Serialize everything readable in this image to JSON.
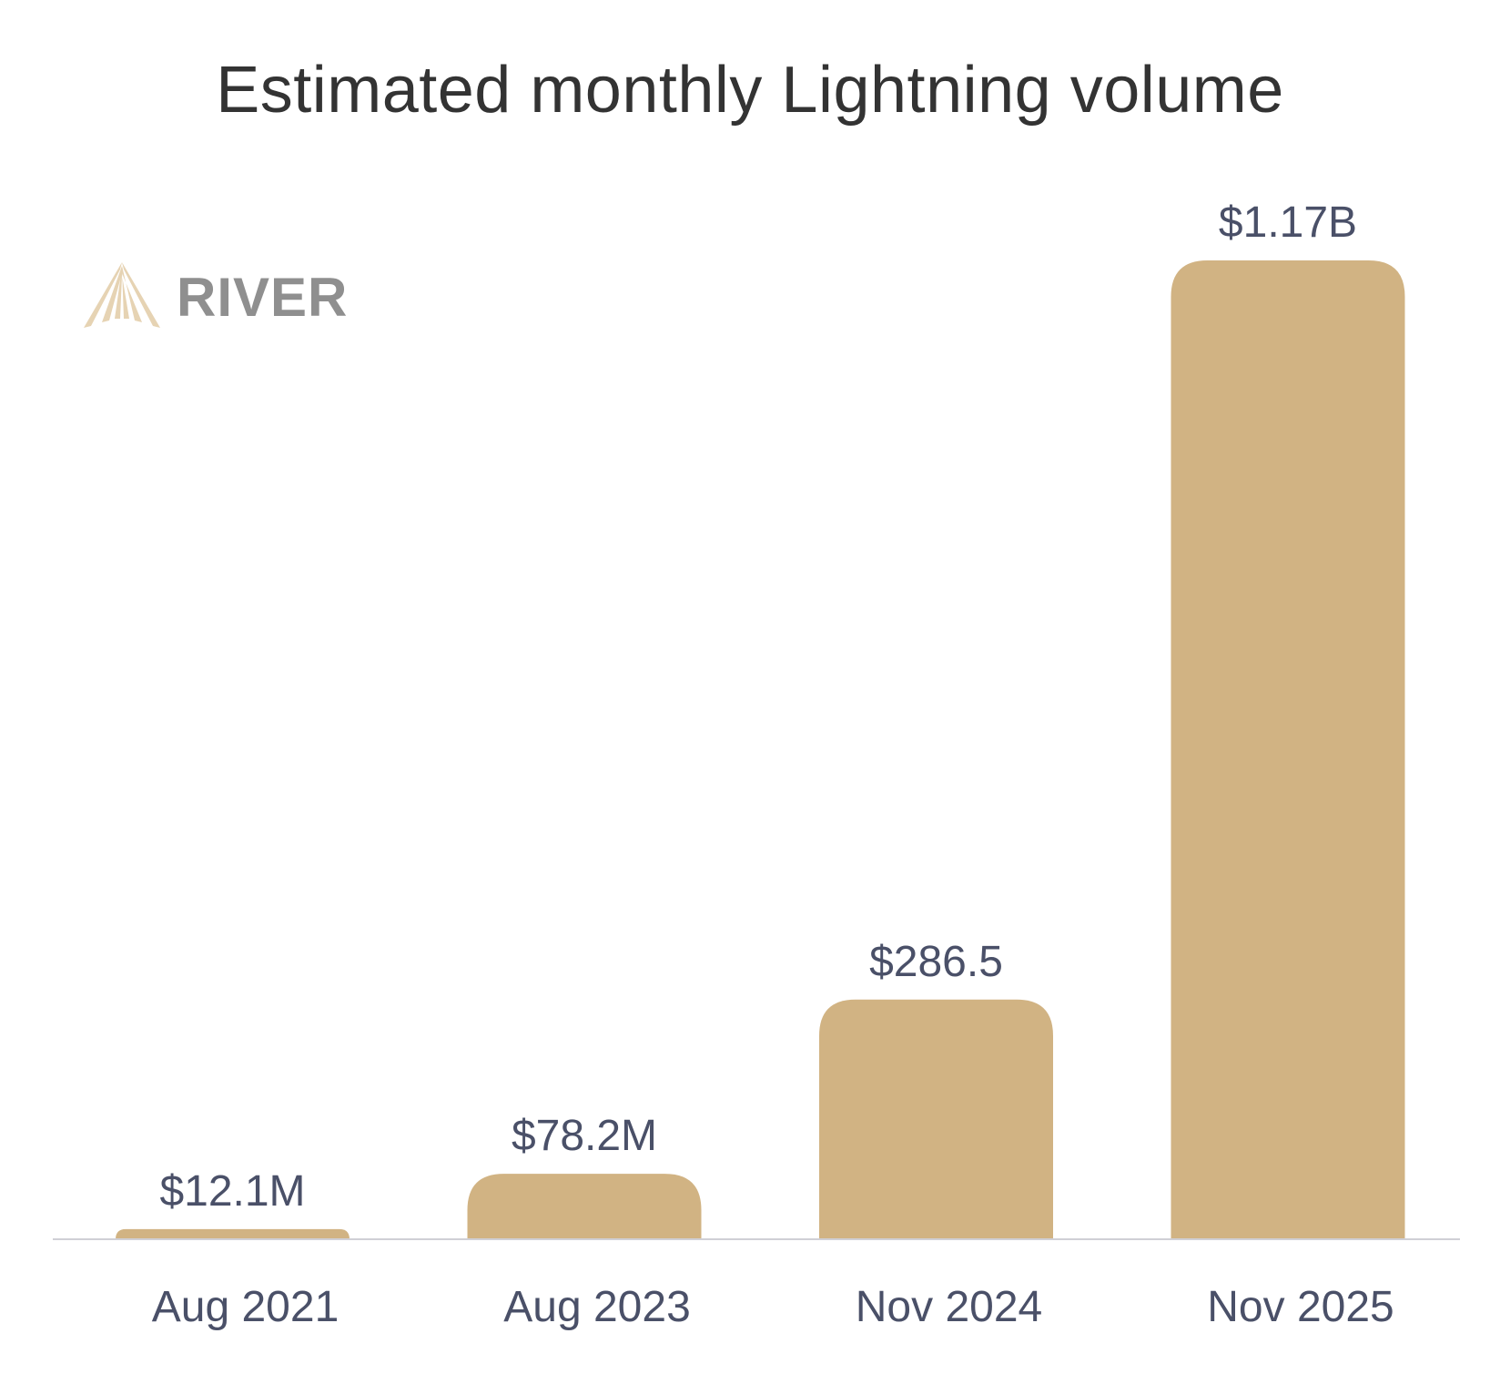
{
  "chart_data": {
    "type": "bar",
    "title": "Estimated monthly Lightning volume",
    "categories": [
      "Aug 2021",
      "Aug 2023",
      "Nov 2024",
      "Nov 2025"
    ],
    "values": [
      12.1,
      78.2,
      286.5,
      1170
    ],
    "value_unit": "USD millions",
    "data_labels": [
      "$12.1M",
      "$78.2M",
      "$286.5",
      "$1.17B"
    ],
    "xlabel": "",
    "ylabel": "",
    "ylim": [
      0,
      1170
    ],
    "grid": false,
    "bar_color": "#d1b383"
  },
  "logo": {
    "text": "RIVER",
    "color": "#8f8f8f",
    "mark_color": "#e6d3b3"
  }
}
